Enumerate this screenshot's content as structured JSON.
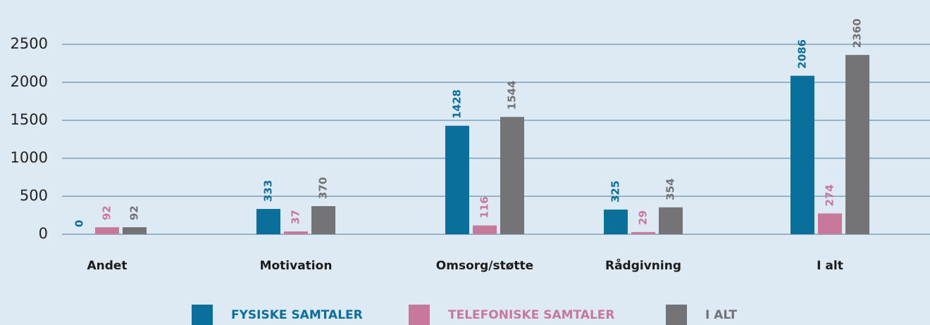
{
  "chart_data": {
    "type": "bar",
    "categories": [
      "Andet",
      "Motivation",
      "Omsorg/støtte",
      "Rådgivning",
      "I alt"
    ],
    "series": [
      {
        "name": "FYSISKE SAMTALER",
        "color": "#0b6f9a",
        "values": [
          0,
          333,
          1428,
          325,
          2086
        ]
      },
      {
        "name": "TELEFONISKE SAMTALER",
        "color": "#c7799c",
        "values": [
          92,
          37,
          116,
          29,
          274
        ]
      },
      {
        "name": "I ALT",
        "color": "#737277",
        "values": [
          92,
          370,
          1544,
          354,
          2360
        ]
      }
    ],
    "ylim": [
      0,
      2500
    ],
    "yticks": [
      0,
      500,
      1000,
      1500,
      2000,
      2500
    ],
    "grid": true,
    "legend": "bottom"
  }
}
